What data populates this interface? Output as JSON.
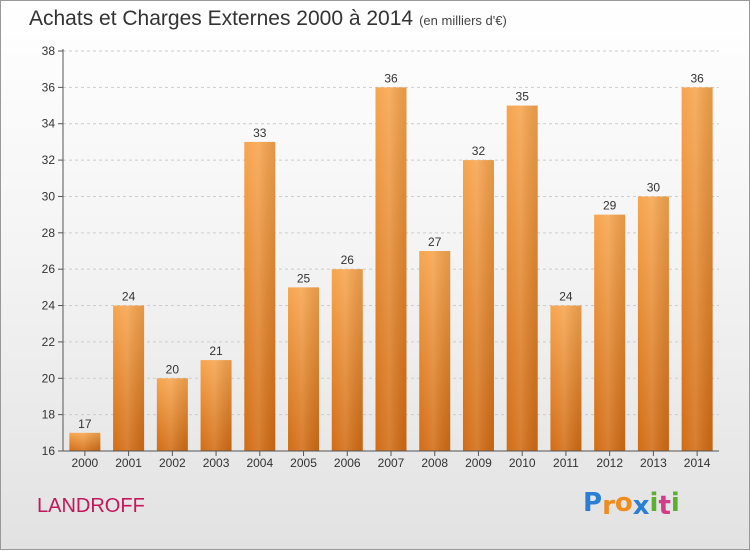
{
  "title": "Achats et Charges Externes 2000 à 2014",
  "subtitle": "(en milliers d'€)",
  "commune": "LANDROFF",
  "logo": {
    "text": "Proxiti",
    "letters": [
      {
        "ch": "P",
        "color": "#2a7fd4"
      },
      {
        "ch": "r",
        "color": "#f08c1e"
      },
      {
        "ch": "o",
        "color": "#f08c1e"
      },
      {
        "ch": "x",
        "color": "#2a7fd4"
      },
      {
        "ch": "i",
        "color": "#5bb030"
      },
      {
        "ch": "t",
        "color": "#d43a8a"
      },
      {
        "ch": "i",
        "color": "#5bb030"
      }
    ]
  },
  "colors": {
    "bar_top": "#f7a54e",
    "bar_bottom": "#d26c14",
    "grid": "#cccccc",
    "axis": "#555555"
  },
  "chart_data": {
    "type": "bar",
    "title": "Achats et Charges Externes 2000 à 2014",
    "subtitle": "(en milliers d'€)",
    "categories": [
      "2000",
      "2001",
      "2002",
      "2003",
      "2004",
      "2005",
      "2006",
      "2007",
      "2008",
      "2009",
      "2010",
      "2011",
      "2012",
      "2013",
      "2014"
    ],
    "values": [
      17,
      24,
      20,
      21,
      33,
      25,
      26,
      36,
      27,
      32,
      35,
      24,
      29,
      30,
      36
    ],
    "ylim": [
      16,
      38
    ],
    "yticks": [
      16,
      18,
      20,
      22,
      24,
      26,
      28,
      30,
      32,
      34,
      36,
      38
    ],
    "grid": "horizontal dashed",
    "data_labels": true
  }
}
